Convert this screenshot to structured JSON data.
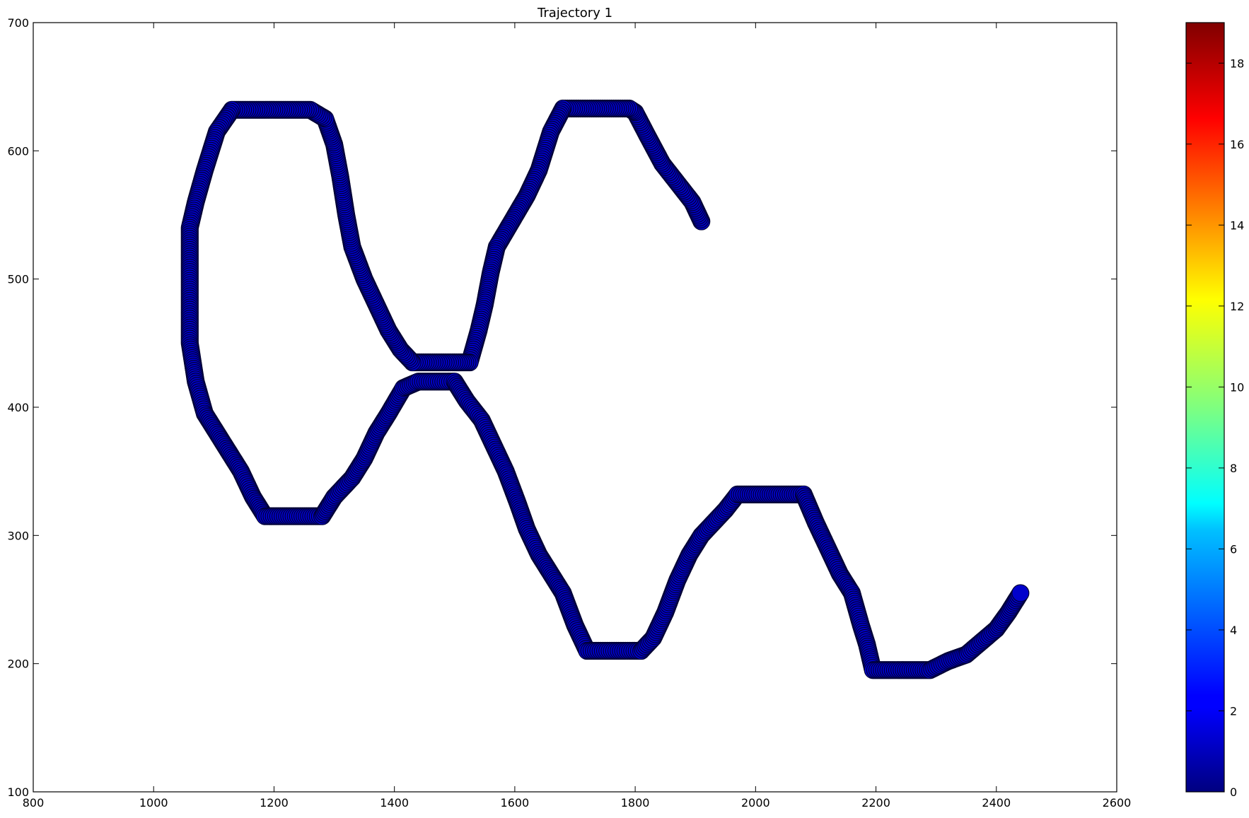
{
  "chart_data": {
    "type": "scatter",
    "title": "Trajectory 1",
    "xlabel": "",
    "ylabel": "",
    "xlim": [
      800,
      2600
    ],
    "ylim": [
      100,
      700
    ],
    "x_ticks": [
      800,
      1000,
      1200,
      1400,
      1600,
      1800,
      2000,
      2200,
      2400,
      2600
    ],
    "y_ticks": [
      100,
      200,
      300,
      400,
      500,
      600,
      700
    ],
    "grid": false,
    "marker_color": "#0000cc",
    "marker_edge_color": "#000033",
    "colorbar": {
      "range": [
        0,
        19
      ],
      "ticks": [
        0,
        2,
        4,
        6,
        8,
        10,
        12,
        14,
        16,
        18
      ],
      "colormap": "jet"
    },
    "path": [
      [
        1910,
        545
      ],
      [
        1895,
        560
      ],
      [
        1870,
        575
      ],
      [
        1845,
        590
      ],
      [
        1820,
        612
      ],
      [
        1800,
        630
      ],
      [
        1790,
        633
      ],
      [
        1680,
        633
      ],
      [
        1660,
        615
      ],
      [
        1640,
        585
      ],
      [
        1620,
        565
      ],
      [
        1595,
        545
      ],
      [
        1570,
        525
      ],
      [
        1560,
        505
      ],
      [
        1550,
        480
      ],
      [
        1540,
        460
      ],
      [
        1525,
        435
      ],
      [
        1500,
        435
      ],
      [
        1430,
        435
      ],
      [
        1410,
        445
      ],
      [
        1390,
        460
      ],
      [
        1370,
        480
      ],
      [
        1350,
        500
      ],
      [
        1330,
        525
      ],
      [
        1320,
        550
      ],
      [
        1310,
        580
      ],
      [
        1300,
        605
      ],
      [
        1285,
        625
      ],
      [
        1260,
        632
      ],
      [
        1130,
        632
      ],
      [
        1105,
        615
      ],
      [
        1085,
        585
      ],
      [
        1070,
        560
      ],
      [
        1060,
        540
      ],
      [
        1060,
        490
      ],
      [
        1060,
        450
      ],
      [
        1070,
        420
      ],
      [
        1085,
        395
      ],
      [
        1105,
        380
      ],
      [
        1125,
        365
      ],
      [
        1145,
        350
      ],
      [
        1165,
        330
      ],
      [
        1185,
        315
      ],
      [
        1280,
        315
      ],
      [
        1300,
        330
      ],
      [
        1330,
        345
      ],
      [
        1350,
        360
      ],
      [
        1370,
        380
      ],
      [
        1390,
        395
      ],
      [
        1415,
        415
      ],
      [
        1440,
        420
      ],
      [
        1500,
        420
      ],
      [
        1520,
        405
      ],
      [
        1545,
        390
      ],
      [
        1565,
        370
      ],
      [
        1585,
        350
      ],
      [
        1605,
        325
      ],
      [
        1620,
        305
      ],
      [
        1640,
        285
      ],
      [
        1660,
        270
      ],
      [
        1680,
        255
      ],
      [
        1700,
        230
      ],
      [
        1720,
        210
      ],
      [
        1810,
        210
      ],
      [
        1830,
        220
      ],
      [
        1850,
        240
      ],
      [
        1870,
        265
      ],
      [
        1890,
        285
      ],
      [
        1910,
        300
      ],
      [
        1930,
        310
      ],
      [
        1950,
        320
      ],
      [
        1970,
        332
      ],
      [
        2080,
        332
      ],
      [
        2100,
        310
      ],
      [
        2120,
        290
      ],
      [
        2140,
        270
      ],
      [
        2160,
        255
      ],
      [
        2175,
        230
      ],
      [
        2185,
        215
      ],
      [
        2195,
        195
      ],
      [
        2290,
        195
      ],
      [
        2320,
        202
      ],
      [
        2350,
        207
      ],
      [
        2375,
        217
      ],
      [
        2400,
        227
      ],
      [
        2420,
        240
      ],
      [
        2440,
        255
      ]
    ]
  }
}
